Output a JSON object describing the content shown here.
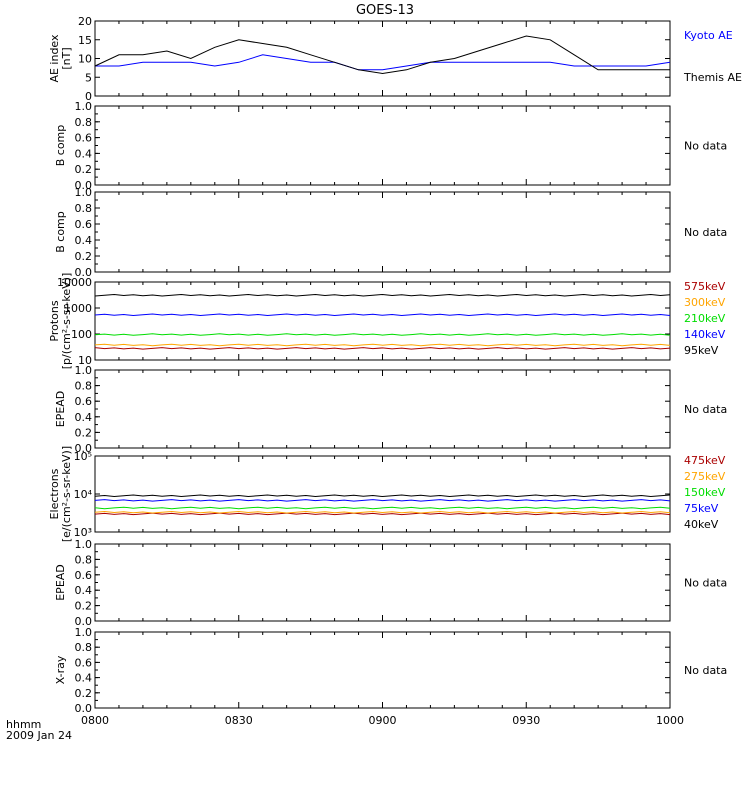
{
  "title": "GOES-13",
  "footer": {
    "time_label": "hhmm",
    "date_label": "2009 Jan 24"
  },
  "colors": {
    "black": "#000000",
    "blue": "#0000ff",
    "green": "#00dd00",
    "orange": "#ffa500",
    "darkred": "#aa0000"
  },
  "chart_data": [
    {
      "type": "line",
      "ylabel": "AE index\n[nT]",
      "ylim": [
        0,
        20
      ],
      "yticks": [
        "0",
        "5",
        "10",
        "15",
        "20"
      ],
      "legend": [
        "Kyoto AE",
        "Themis AE"
      ],
      "x": [
        0,
        5,
        10,
        15,
        20,
        25,
        30,
        35,
        40,
        45,
        50,
        55,
        60,
        65,
        70,
        75,
        80,
        85,
        90,
        95,
        100,
        105,
        110,
        115,
        120
      ],
      "series": [
        {
          "name": "Kyoto AE",
          "color": "#0000ff",
          "values": [
            8,
            8,
            9,
            9,
            9,
            8,
            9,
            11,
            10,
            9,
            9,
            7,
            7,
            8,
            9,
            9,
            9,
            9,
            9,
            9,
            8,
            8,
            8,
            8,
            9
          ]
        },
        {
          "name": "Themis AE",
          "color": "#000000",
          "values": [
            8,
            11,
            11,
            12,
            10,
            13,
            15,
            14,
            13,
            11,
            9,
            7,
            6,
            7,
            9,
            10,
            12,
            14,
            16,
            15,
            11,
            7,
            7,
            7,
            7
          ]
        }
      ]
    },
    {
      "type": "line",
      "ylabel": "B comp",
      "ylim": [
        0,
        1
      ],
      "yticks": [
        "0.0",
        "0.2",
        "0.4",
        "0.6",
        "0.8",
        "1.0"
      ],
      "note": "No data"
    },
    {
      "type": "line",
      "ylabel": "B comp",
      "ylim": [
        0,
        1
      ],
      "yticks": [
        "0.0",
        "0.2",
        "0.4",
        "0.6",
        "0.8",
        "1.0"
      ],
      "note": "No data"
    },
    {
      "type": "line",
      "ylabel": "Protons\n[p/(cm²-s-sr-keV)]",
      "log": true,
      "ylim": [
        10,
        10000
      ],
      "yticks": [
        "10",
        "100",
        "1000",
        "10000"
      ],
      "legend": [
        "575keV",
        "300keV",
        "210keV",
        "140keV",
        "95keV"
      ],
      "series": [
        {
          "name": "575keV",
          "color": "#aa0000",
          "level": 28
        },
        {
          "name": "300keV",
          "color": "#ffa500",
          "level": 38
        },
        {
          "name": "210keV",
          "color": "#00dd00",
          "level": 95
        },
        {
          "name": "140keV",
          "color": "#0000ff",
          "level": 550
        },
        {
          "name": "95keV",
          "color": "#000000",
          "level": 3100
        }
      ]
    },
    {
      "type": "line",
      "ylabel": "EPEAD",
      "ylim": [
        0,
        1
      ],
      "yticks": [
        "0.0",
        "0.2",
        "0.4",
        "0.6",
        "0.8",
        "1.0"
      ],
      "note": "No data"
    },
    {
      "type": "line",
      "ylabel": "Electrons\n[e/(cm²-s-sr-keV)]",
      "log": true,
      "ylim": [
        1000,
        100000
      ],
      "yticks": [
        "10³",
        "10⁴",
        "10⁵"
      ],
      "legend": [
        "475keV",
        "275keV",
        "150keV",
        "75keV",
        "40keV"
      ],
      "series": [
        {
          "name": "475keV",
          "color": "#aa0000",
          "level": 3000
        },
        {
          "name": "275keV",
          "color": "#ffa500",
          "level": 3300
        },
        {
          "name": "150keV",
          "color": "#00dd00",
          "level": 4300
        },
        {
          "name": "75keV",
          "color": "#0000ff",
          "level": 6800
        },
        {
          "name": "40keV",
          "color": "#000000",
          "level": 9000
        }
      ]
    },
    {
      "type": "line",
      "ylabel": "EPEAD",
      "ylim": [
        0,
        1
      ],
      "yticks": [
        "0.0",
        "0.2",
        "0.4",
        "0.6",
        "0.8",
        "1.0"
      ],
      "note": "No data"
    },
    {
      "type": "line",
      "ylabel": "X-ray",
      "ylim": [
        0,
        1
      ],
      "yticks": [
        "0.0",
        "0.2",
        "0.4",
        "0.6",
        "0.8",
        "1.0"
      ],
      "note": "No data"
    }
  ],
  "x_axis": {
    "ticks": [
      "0800",
      "0830",
      "0900",
      "0930",
      "1000"
    ],
    "range_minutes": [
      0,
      120
    ]
  }
}
